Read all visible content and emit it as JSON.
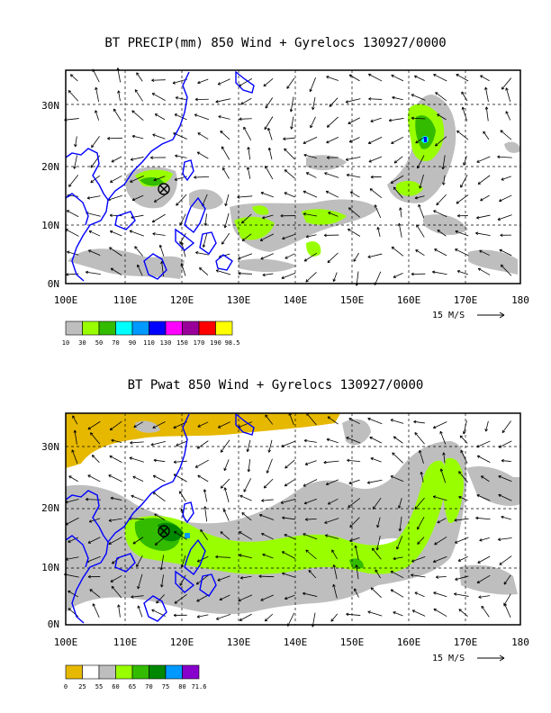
{
  "panels": [
    {
      "id": "precip",
      "title": "BT PRECIP(mm) 850 Wind + Gyrelocs 130927/0000",
      "y_ticks": [
        "30N",
        "20N",
        "10N",
        "0N"
      ],
      "x_ticks": [
        "100E",
        "110E",
        "120E",
        "130E",
        "140E",
        "150E",
        "160E",
        "170E",
        "180"
      ],
      "vector_reference": "15 M/S",
      "legend_colors": [
        "#bebebe",
        "#99ff00",
        "#33bb00",
        "#00ffff",
        "#0099ff",
        "#0000ff",
        "#ff00ff",
        "#990099",
        "#ff0000",
        "#ffff00"
      ],
      "legend_labels": [
        "10",
        "30",
        "50",
        "70",
        "90",
        "110",
        "130",
        "150",
        "170",
        "190",
        "98.5"
      ]
    },
    {
      "id": "pwat",
      "title": "BT Pwat 850 Wind + Gyrelocs 130927/0000",
      "y_ticks": [
        "30N",
        "20N",
        "10N",
        "0N"
      ],
      "x_ticks": [
        "100E",
        "110E",
        "120E",
        "130E",
        "140E",
        "150E",
        "160E",
        "170E",
        "180"
      ],
      "vector_reference": "15 M/S",
      "legend_colors": [
        "#e6b800",
        "#ffffff",
        "#bebebe",
        "#99ff00",
        "#33bb00",
        "#008800",
        "#0099ff",
        "#8800cc"
      ],
      "legend_labels": [
        "0",
        "25",
        "55",
        "60",
        "65",
        "70",
        "75",
        "80",
        "71.6"
      ]
    }
  ],
  "gyre_center": {
    "lon": 117.5,
    "lat": 16
  },
  "colors": {
    "coast": "#0000ff",
    "frame": "#000000"
  }
}
